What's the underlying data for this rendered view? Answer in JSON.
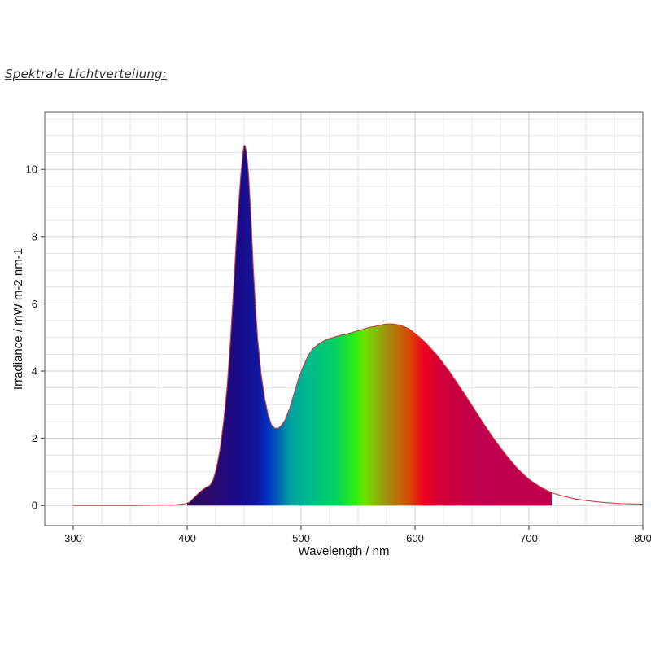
{
  "page": {
    "heading": "Spektrale Lichtverteilung:"
  },
  "chart_data": {
    "type": "area",
    "title": "",
    "xlabel": "Wavelength / nm",
    "ylabel": "Irradiance / mW m-2 nm-1",
    "xlim": [
      275,
      800
    ],
    "ylim": [
      -0.6,
      11.7
    ],
    "xticks": [
      300,
      400,
      500,
      600,
      700,
      800
    ],
    "yticks": [
      0,
      2,
      4,
      6,
      8,
      10
    ],
    "grid": true,
    "legend": "none",
    "fill_range": [
      400,
      720
    ],
    "fill_gradient": [
      {
        "wavelength": 400,
        "color": "#2a0a55"
      },
      {
        "wavelength": 420,
        "color": "#2b0a6a"
      },
      {
        "wavelength": 445,
        "color": "#1a0a88"
      },
      {
        "wavelength": 462,
        "color": "#1018a0"
      },
      {
        "wavelength": 470,
        "color": "#0030c0"
      },
      {
        "wavelength": 478,
        "color": "#0055b8"
      },
      {
        "wavelength": 490,
        "color": "#00a0a0"
      },
      {
        "wavelength": 505,
        "color": "#00b890"
      },
      {
        "wavelength": 530,
        "color": "#00d060"
      },
      {
        "wavelength": 548,
        "color": "#30ee10"
      },
      {
        "wavelength": 556,
        "color": "#70e000"
      },
      {
        "wavelength": 575,
        "color": "#a09010"
      },
      {
        "wavelength": 595,
        "color": "#d84800"
      },
      {
        "wavelength": 608,
        "color": "#ee0020"
      },
      {
        "wavelength": 622,
        "color": "#d00038"
      },
      {
        "wavelength": 660,
        "color": "#c00050"
      },
      {
        "wavelength": 720,
        "color": "#c0004c"
      }
    ],
    "series": [
      {
        "color": "#c84040",
        "x": [
          300,
          350,
          390,
          398,
          402,
          405,
          408,
          411,
          414,
          417,
          420,
          423,
          426,
          429,
          432,
          435,
          438,
          441,
          444,
          447,
          449,
          450,
          451,
          452,
          453,
          454,
          456,
          458,
          460,
          462,
          465,
          468,
          471,
          474,
          477,
          480,
          483,
          486,
          490,
          494,
          498,
          502,
          506,
          510,
          515,
          520,
          525,
          530,
          535,
          540,
          545,
          550,
          555,
          560,
          565,
          570,
          575,
          580,
          585,
          590,
          595,
          600,
          605,
          610,
          620,
          630,
          640,
          650,
          660,
          670,
          680,
          690,
          700,
          710,
          720,
          730,
          740,
          750,
          760,
          770,
          780,
          790,
          800
        ],
        "y": [
          0.0,
          0.0,
          0.02,
          0.05,
          0.1,
          0.2,
          0.3,
          0.4,
          0.48,
          0.55,
          0.6,
          0.78,
          1.15,
          1.7,
          2.5,
          3.5,
          4.9,
          6.6,
          8.4,
          9.8,
          10.5,
          10.72,
          10.7,
          10.5,
          10.2,
          9.8,
          8.6,
          7.1,
          5.9,
          4.9,
          3.9,
          3.2,
          2.7,
          2.4,
          2.3,
          2.3,
          2.4,
          2.55,
          2.9,
          3.35,
          3.8,
          4.15,
          4.45,
          4.65,
          4.8,
          4.9,
          4.97,
          5.02,
          5.07,
          5.1,
          5.15,
          5.2,
          5.25,
          5.3,
          5.33,
          5.37,
          5.4,
          5.4,
          5.38,
          5.33,
          5.25,
          5.12,
          4.98,
          4.82,
          4.45,
          4.0,
          3.5,
          2.98,
          2.45,
          1.95,
          1.5,
          1.1,
          0.78,
          0.55,
          0.38,
          0.28,
          0.2,
          0.15,
          0.11,
          0.08,
          0.06,
          0.05,
          0.04
        ]
      }
    ]
  }
}
